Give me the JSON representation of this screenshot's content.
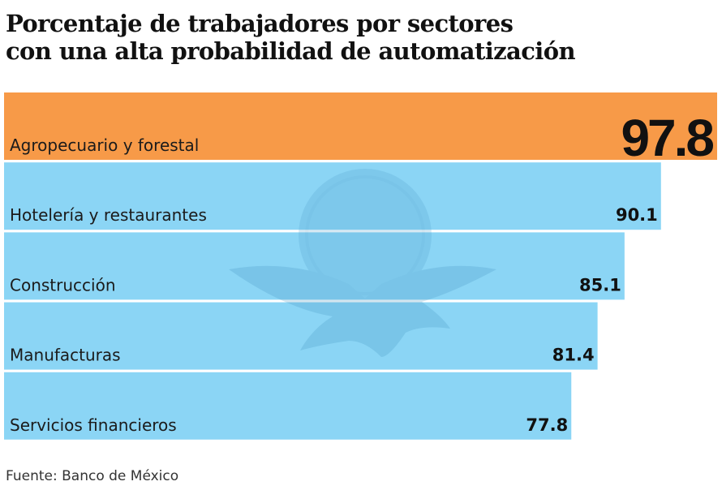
{
  "title_lines": [
    "Porcentaje de trabajadores por sectores",
    "con una alta probabilidad de automatización"
  ],
  "source": "Fuente: Banco de México",
  "colors": {
    "highlight": "#F79A48",
    "bar": "#8BD5F5",
    "watermark": "#6FB9DE"
  },
  "watermark_icon": "eagle-globe-logo",
  "chart_data": {
    "type": "bar",
    "orientation": "horizontal",
    "title": "Porcentaje de trabajadores por sectores con una alta probabilidad de automatización",
    "xlabel": "",
    "ylabel": "",
    "xlim": [
      0,
      97.8
    ],
    "grid": false,
    "categories": [
      "Agropecuario y forestal",
      "Hotelería y restaurantes",
      "Construcción",
      "Manufacturas",
      "Servicios financieros"
    ],
    "values": [
      97.8,
      90.1,
      85.1,
      81.4,
      77.8
    ],
    "value_labels": [
      "97.8",
      "90.1",
      "85.1",
      "81.4",
      "77.8"
    ],
    "highlight_index": 0
  }
}
